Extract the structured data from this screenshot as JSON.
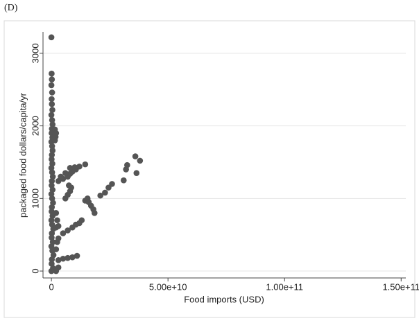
{
  "chart_data": {
    "type": "scatter",
    "panel_label": "(D)",
    "x_label": "Food imports (USD)",
    "y_label": "packaged food dollars/capita/yr",
    "xlim": [
      -3600000000,
      152000000000
    ],
    "ylim": [
      -95,
      3295
    ],
    "xticks": [
      0,
      {
        "value": 50000000000,
        "label": "5.00e+10"
      },
      {
        "value": 100000000000,
        "label": "1.00e+11"
      },
      {
        "value": 150000000000,
        "label": "1.50e+11"
      }
    ],
    "yticks": [
      0,
      1000,
      2000,
      3000
    ],
    "grid": true,
    "color": "#555555",
    "x": [
      0,
      100000000,
      200000000,
      0,
      300000000,
      100000000,
      200000000,
      400000000,
      0,
      300000000,
      500000000,
      200000000,
      100000000,
      400000000,
      0,
      300000000,
      500000000,
      200000000,
      100000000,
      400000000,
      0,
      300000000,
      600000000,
      200000000,
      100000000,
      500000000,
      0,
      300000000,
      700000000,
      200000000,
      100000000,
      500000000,
      0,
      300000000,
      800000000,
      200000000,
      100000000,
      600000000,
      0,
      400000000,
      900000000,
      200000000,
      100000000,
      700000000,
      0,
      1500000000,
      2000000000,
      1800000000,
      1500000000,
      2000000000,
      2500000000,
      2000000000,
      3000000000,
      2000000000,
      3000000000,
      5000000000,
      7000000000,
      8000000000,
      9000000000,
      10500000000,
      12000000000,
      14500000000,
      6000000000,
      7000000000,
      8000000000,
      8500000000,
      7500000000,
      14500000000,
      15500000000,
      16000000000,
      17000000000,
      18000000000,
      18500000000,
      21000000000,
      23000000000,
      24500000000,
      26000000000,
      31000000000,
      32000000000,
      32500000000,
      36000000000,
      38000000000,
      36500000000,
      3000000000,
      5000000000,
      7000000000,
      9000000000,
      10500000000,
      12000000000,
      13000000000,
      3000000000,
      5000000000,
      7000000000,
      9000000000,
      11000000000,
      2000000000,
      2500000000,
      3000000000,
      4000000000,
      6000000000,
      8000000000,
      10000000000
    ],
    "values": [
      3220,
      2720,
      2640,
      2560,
      2460,
      2370,
      2300,
      2220,
      2150,
      2080,
      2020,
      1960,
      1900,
      1840,
      1780,
      1720,
      1660,
      1600,
      1540,
      1480,
      1420,
      1360,
      1300,
      1240,
      1180,
      1120,
      1060,
      1000,
      940,
      880,
      820,
      760,
      700,
      640,
      580,
      520,
      460,
      400,
      340,
      280,
      220,
      160,
      100,
      40,
      0,
      1950,
      1900,
      1850,
      1800,
      600,
      400,
      300,
      50,
      0,
      1240,
      1270,
      1300,
      1340,
      1370,
      1400,
      1440,
      1470,
      1000,
      1050,
      1100,
      1150,
      1180,
      970,
      1000,
      950,
      900,
      850,
      800,
      1040,
      1080,
      1150,
      1200,
      1250,
      1400,
      1460,
      1580,
      1520,
      1350,
      450,
      520,
      560,
      600,
      640,
      660,
      700,
      150,
      170,
      180,
      190,
      210,
      800,
      700,
      620,
      1300,
      1350,
      1420,
      1430
    ]
  }
}
